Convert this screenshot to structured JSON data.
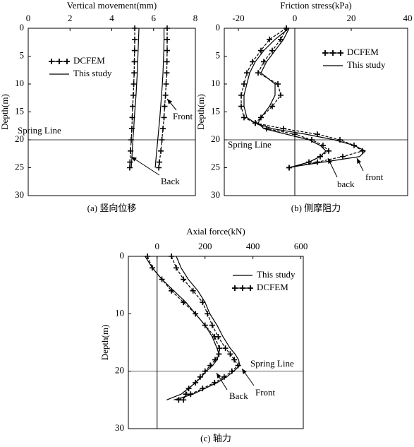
{
  "chart_data": [
    {
      "type": "line",
      "title": "Vertical movement(mm)",
      "y_label": "Depth(m)",
      "caption": "(a) 竖向位移",
      "xlim": [
        0,
        8
      ],
      "xticks": [
        0,
        2,
        4,
        6,
        8
      ],
      "ylim": [
        0,
        30
      ],
      "yticks": [
        0,
        5,
        10,
        15,
        20,
        25,
        30
      ],
      "spring_line": 20,
      "annotations": [
        "Spring Line",
        "Front",
        "Back"
      ],
      "y": [
        0,
        2,
        4,
        6,
        8,
        10,
        12,
        14,
        16,
        18,
        20,
        22,
        24,
        25
      ],
      "series": [
        {
          "name": "DCFEM",
          "color": "#000000",
          "marker": "cross",
          "values": [
            [
              6.65,
              6.65,
              6.65,
              6.64,
              6.63,
              6.6,
              6.57,
              6.53,
              6.5,
              6.45,
              6.4,
              6.35,
              6.28,
              6.25
            ],
            [
              5.1,
              5.1,
              5.09,
              5.08,
              5.07,
              5.05,
              5.03,
              5.0,
              4.98,
              4.96,
              4.93,
              4.9,
              4.87,
              4.86
            ]
          ]
        },
        {
          "name": "This study",
          "color": "#000000",
          "marker": "none",
          "values": [
            [
              6.5,
              6.5,
              6.49,
              6.47,
              6.45,
              6.42,
              6.38,
              6.34,
              6.3,
              6.25,
              6.2,
              6.15,
              6.1,
              6.08
            ],
            [
              5.3,
              5.28,
              5.26,
              5.24,
              5.22,
              5.19,
              5.16,
              5.12,
              5.08,
              5.05,
              5.01,
              4.98,
              4.95,
              4.93
            ]
          ]
        }
      ]
    },
    {
      "type": "line",
      "title": "Friction stress(kPa)",
      "y_label": "Depth(m)",
      "caption": "(b) 侧摩阻力",
      "xlim": [
        -25,
        40
      ],
      "xticks": [
        -20,
        0,
        20,
        40
      ],
      "ylim": [
        0,
        30
      ],
      "yticks": [
        0,
        5,
        10,
        15,
        20,
        25,
        30
      ],
      "spring_line": 20,
      "zero_line": 0,
      "annotations": [
        "Spring Line",
        "back",
        "front"
      ],
      "y": [
        0,
        2,
        4,
        6,
        8,
        10,
        12,
        14,
        16,
        17,
        18,
        19,
        20,
        21,
        22,
        23,
        24,
        25
      ],
      "series": [
        {
          "name": "DCFEM",
          "color": "#000000",
          "marker": "cross",
          "values": [
            [
              -3,
              -9,
              -12,
              -15,
              -17,
              -18,
              -19,
              -19,
              -18,
              -14,
              -4,
              8,
              16,
              21,
              24,
              17,
              8,
              -2
            ],
            [
              -3,
              -5,
              -8,
              -11,
              -13,
              -6,
              -5,
              -8,
              -12,
              -14,
              -10,
              0,
              6,
              10,
              12,
              9,
              5,
              -2
            ]
          ]
        },
        {
          "name": "This study",
          "color": "#000000",
          "marker": "none",
          "values": [
            [
              -2,
              -7,
              -11,
              -14,
              -16,
              -17,
              -18,
              -18,
              -17,
              -14,
              -8,
              4,
              14,
              21,
              25,
              23,
              10,
              -3
            ],
            [
              -2,
              -4,
              -7,
              -10,
              -12,
              -7,
              -7,
              -9,
              -12,
              -13,
              -11,
              -3,
              5,
              9,
              11,
              9,
              5,
              -2
            ]
          ]
        }
      ]
    },
    {
      "type": "line",
      "title": "Axial force(kN)",
      "y_label": "Depth(m)",
      "caption": "(c) 轴力",
      "xlim": [
        -120,
        610
      ],
      "xticks": [
        0,
        200,
        400,
        600
      ],
      "ylim": [
        0,
        30
      ],
      "yticks": [
        0,
        10,
        20,
        30
      ],
      "spring_line": 20,
      "zero_line": 0,
      "annotations": [
        "Spring Line",
        "Front",
        "Back"
      ],
      "y": [
        0,
        2,
        4,
        6,
        8,
        10,
        12,
        14,
        16,
        17,
        18,
        19,
        20,
        21,
        22,
        23,
        24,
        25
      ],
      "series": [
        {
          "name": "This study",
          "color": "#000000",
          "marker": "none",
          "values": [
            [
              80,
              100,
              130,
              170,
              200,
              220,
              250,
              275,
              305,
              325,
              340,
              345,
              320,
              290,
              250,
              200,
              150,
              70
            ],
            [
              -50,
              -20,
              20,
              70,
              120,
              160,
              200,
              230,
              250,
              258,
              250,
              232,
              205,
              185,
              160,
              130,
              100,
              40
            ]
          ]
        },
        {
          "name": "DCFEM",
          "color": "#000000",
          "marker": "cross",
          "values": [
            [
              60,
              80,
              110,
              150,
              190,
              210,
              230,
              255,
              285,
              305,
              322,
              338,
              312,
              280,
              240,
              190,
              140,
              90
            ],
            [
              -40,
              -20,
              20,
              60,
              110,
              160,
              200,
              240,
              260,
              258,
              242,
              222,
              200,
              180,
              160,
              132,
              120,
              110
            ]
          ]
        }
      ]
    }
  ]
}
